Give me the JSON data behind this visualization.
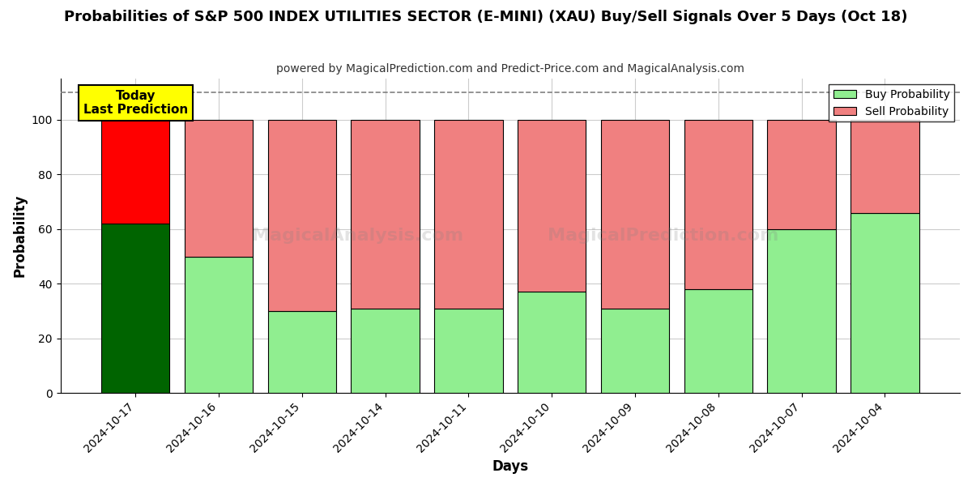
{
  "title": "Probabilities of S&P 500 INDEX UTILITIES SECTOR (E-MINI) (XAU) Buy/Sell Signals Over 5 Days (Oct 18)",
  "subtitle": "powered by MagicalPrediction.com and Predict-Price.com and MagicalAnalysis.com",
  "xlabel": "Days",
  "ylabel": "Probability",
  "categories": [
    "2024-10-17",
    "2024-10-16",
    "2024-10-15",
    "2024-10-14",
    "2024-10-11",
    "2024-10-10",
    "2024-10-09",
    "2024-10-08",
    "2024-10-07",
    "2024-10-04"
  ],
  "buy_values": [
    62,
    50,
    30,
    31,
    31,
    37,
    31,
    38,
    60,
    66
  ],
  "sell_values": [
    38,
    50,
    70,
    69,
    69,
    63,
    69,
    62,
    40,
    34
  ],
  "buy_colors": [
    "#006400",
    "#90EE90",
    "#90EE90",
    "#90EE90",
    "#90EE90",
    "#90EE90",
    "#90EE90",
    "#90EE90",
    "#90EE90",
    "#90EE90"
  ],
  "sell_colors": [
    "#FF0000",
    "#F08080",
    "#F08080",
    "#F08080",
    "#F08080",
    "#F08080",
    "#F08080",
    "#F08080",
    "#F08080",
    "#F08080"
  ],
  "today_label": "Today\nLast Prediction",
  "today_bg": "#FFFF00",
  "legend_buy_color": "#90EE90",
  "legend_sell_color": "#F08080",
  "legend_buy_label": "Buy Probability",
  "legend_sell_label": "Sell Probability",
  "ylim": [
    0,
    115
  ],
  "yticks": [
    0,
    20,
    40,
    60,
    80,
    100
  ],
  "dashed_line_y": 110,
  "watermark1": "MagicalAnalysis.com",
  "watermark2": "MagicalPrediction.com",
  "background_color": "#ffffff",
  "grid_color": "#cccccc",
  "bar_width": 0.82
}
